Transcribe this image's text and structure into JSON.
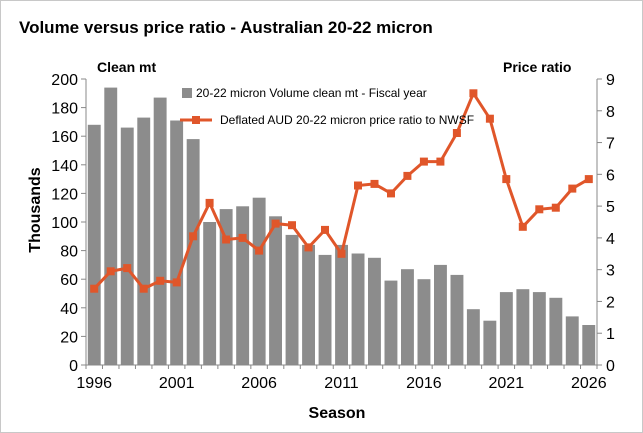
{
  "chart_data": {
    "type": "bar+line",
    "title": "Volume versus price ratio - Australian 20-22 micron",
    "xlabel": "Season",
    "ylabel_left": "Thousands",
    "left_axis_caption": "Clean mt",
    "right_axis_caption": "Price ratio",
    "ylim_left": [
      0,
      200
    ],
    "ylim_right": [
      0,
      9
    ],
    "x_ticks": [
      1996,
      2001,
      2006,
      2011,
      2016,
      2021,
      2026
    ],
    "y_ticks_left": [
      0,
      20,
      40,
      60,
      80,
      100,
      120,
      140,
      160,
      180,
      200
    ],
    "y_ticks_right": [
      0,
      1,
      2,
      3,
      4,
      5,
      6,
      7,
      8,
      9
    ],
    "seasons": [
      1996,
      1997,
      1998,
      1999,
      2000,
      2001,
      2002,
      2003,
      2004,
      2005,
      2006,
      2007,
      2008,
      2009,
      2010,
      2011,
      2012,
      2013,
      2014,
      2015,
      2016,
      2017,
      2018,
      2019,
      2020,
      2021,
      2022,
      2023,
      2024,
      2025,
      2026
    ],
    "series": [
      {
        "name": "20-22 micron Volume clean mt - Fiscal year",
        "axis": "left",
        "color": "#8c8c8c",
        "values": [
          168,
          194,
          166,
          173,
          187,
          171,
          158,
          100,
          109,
          111,
          117,
          104,
          91,
          84,
          77,
          84,
          78,
          75,
          59,
          67,
          60,
          70,
          63,
          39,
          31,
          51,
          53,
          51,
          47,
          34,
          28
        ]
      },
      {
        "name": "Deflated AUD 20-22 micron price ratio to NWSF",
        "axis": "right",
        "color": "#e0562a",
        "values": [
          2.4,
          2.95,
          3.05,
          2.4,
          2.65,
          2.6,
          4.05,
          5.1,
          3.95,
          4.0,
          3.6,
          4.45,
          4.4,
          3.7,
          4.25,
          3.5,
          5.65,
          5.7,
          5.4,
          5.95,
          6.4,
          6.4,
          7.3,
          8.55,
          7.75,
          5.85,
          4.35,
          4.9,
          4.95,
          5.55,
          5.85
        ]
      }
    ],
    "legend_placement": "top-center",
    "grid": false
  }
}
